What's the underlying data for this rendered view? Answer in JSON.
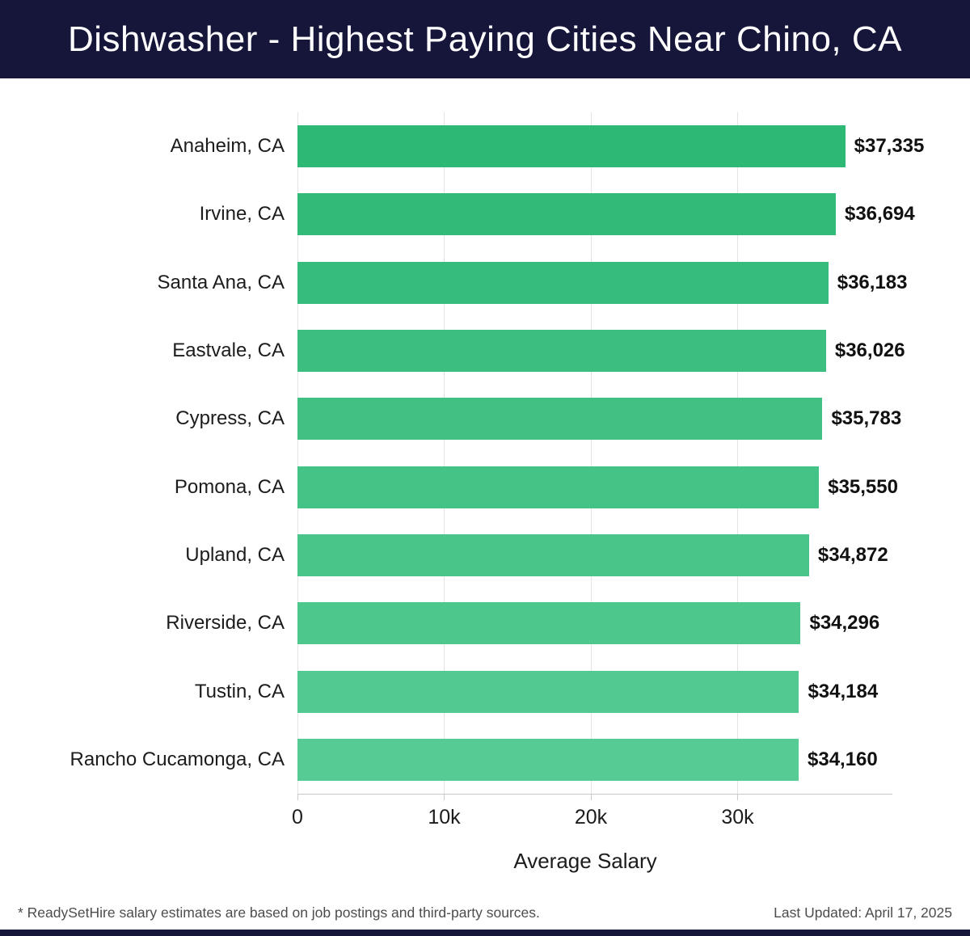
{
  "header": {
    "title": "Dishwasher - Highest Paying Cities Near Chino, CA"
  },
  "theme": {
    "header_bg": "#16163a",
    "grid_color": "#e3e3e3",
    "axis_color": "#c9c9c9",
    "label_color": "#1c1c1c",
    "value_color": "#111111",
    "muted_color": "#4d4d4d",
    "bar_color_start": "#2db876",
    "bar_color_end": "#57cb94"
  },
  "chart_data": {
    "type": "bar",
    "orientation": "horizontal",
    "title": "Dishwasher - Highest Paying Cities Near Chino, CA",
    "categories": [
      "Anaheim, CA",
      "Irvine, CA",
      "Santa Ana, CA",
      "Eastvale, CA",
      "Cypress, CA",
      "Pomona, CA",
      "Upland, CA",
      "Riverside, CA",
      "Tustin, CA",
      "Rancho Cucamonga, CA"
    ],
    "values": [
      37335,
      36694,
      36183,
      36026,
      35783,
      35550,
      34872,
      34296,
      34184,
      34160
    ],
    "value_labels": [
      "$37,335",
      "$36,694",
      "$36,183",
      "$36,026",
      "$35,783",
      "$35,550",
      "$34,872",
      "$34,296",
      "$34,184",
      "$34,160"
    ],
    "xlabel": "Average Salary",
    "ylabel": "",
    "xlim": [
      0,
      40500
    ],
    "xticks": [
      {
        "value": 0,
        "label": "0"
      },
      {
        "value": 10000,
        "label": "10k"
      },
      {
        "value": 20000,
        "label": "20k"
      },
      {
        "value": 30000,
        "label": "30k"
      }
    ],
    "grid": true,
    "legend": false
  },
  "footer": {
    "disclaimer": "* ReadySetHire salary estimates are based on job postings and third-party sources.",
    "last_updated": "Last Updated: April 17, 2025"
  }
}
